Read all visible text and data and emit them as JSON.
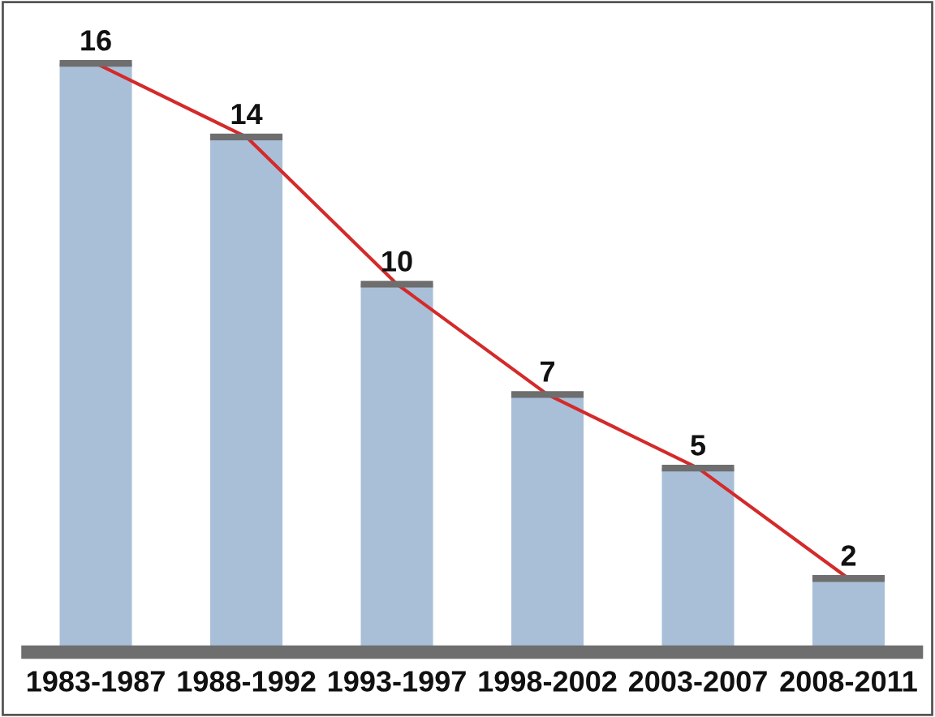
{
  "chart_data": {
    "type": "bar",
    "categories": [
      "1983-1987",
      "1988-1992",
      "1993-1997",
      "1998-2002",
      "2003-2007",
      "2008-2011"
    ],
    "series": [
      {
        "type": "bar",
        "color": "#a9bfd8",
        "values": [
          16,
          14,
          10,
          7,
          5,
          2
        ],
        "value_labels": [
          "16",
          "14",
          "10",
          "7",
          "5",
          "2"
        ]
      },
      {
        "type": "line",
        "color": "#d42a2a",
        "values": [
          16,
          14,
          10,
          7,
          5,
          2
        ]
      }
    ]
  }
}
